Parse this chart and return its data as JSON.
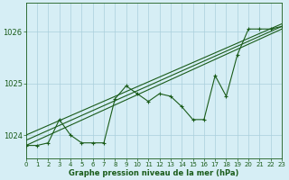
{
  "title": "Graphe pression niveau de la mer (hPa)",
  "bg_color": "#d6eef5",
  "grid_color": "#aacfdc",
  "line_color": "#1a5c1a",
  "x_min": 0,
  "x_max": 23,
  "y_min": 1023.55,
  "y_max": 1026.55,
  "y_ticks": [
    1024,
    1025,
    1026
  ],
  "x_ticks": [
    0,
    1,
    2,
    3,
    4,
    5,
    6,
    7,
    8,
    9,
    10,
    11,
    12,
    13,
    14,
    15,
    16,
    17,
    18,
    19,
    20,
    21,
    22,
    23
  ],
  "series_main": [
    1023.8,
    1023.8,
    1023.85,
    1024.3,
    1024.0,
    1023.85,
    1023.85,
    1023.85,
    1024.7,
    1024.95,
    1024.8,
    1024.65,
    1024.8,
    1024.75,
    1024.55,
    1024.3,
    1024.3,
    1025.15,
    1024.75,
    1025.55,
    1026.05,
    1026.05,
    1026.05,
    1026.1
  ],
  "line_lower": [
    [
      0,
      1023.8
    ],
    [
      23,
      1026.05
    ]
  ],
  "line_upper": [
    [
      0,
      1024.0
    ],
    [
      23,
      1026.15
    ]
  ],
  "line_mid": [
    [
      0,
      1023.9
    ],
    [
      23,
      1026.1
    ]
  ]
}
